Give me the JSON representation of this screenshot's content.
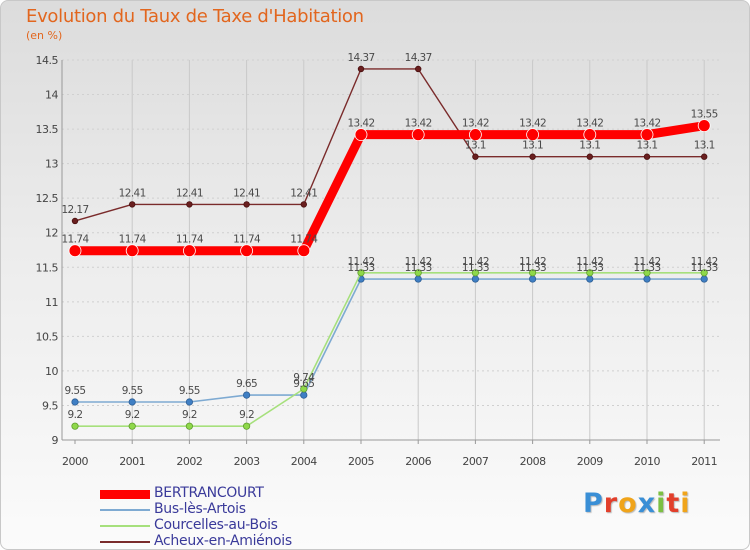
{
  "header": {
    "title": "Evolution du Taux de Taxe d'Habitation",
    "subtitle": "(en %)"
  },
  "chart_data": {
    "type": "line",
    "title": "Evolution du Taux de Taxe d'Habitation",
    "ylabel": "(en %)",
    "xlabel": "",
    "ylim": [
      9,
      14.5
    ],
    "x": [
      "2000",
      "2001",
      "2002",
      "2003",
      "2004",
      "2005",
      "2006",
      "2007",
      "2008",
      "2009",
      "2010",
      "2011"
    ],
    "y_ticks": [
      "9",
      "9.5",
      "10",
      "10.5",
      "11",
      "11.5",
      "12",
      "12.5",
      "13",
      "13.5",
      "14",
      "14.5"
    ],
    "legend_position": "bottom",
    "series": [
      {
        "name": "BERTRANCOURT",
        "color": "#ff0000",
        "values": [
          11.74,
          11.74,
          11.74,
          11.74,
          11.74,
          13.42,
          13.42,
          13.42,
          13.42,
          13.42,
          13.42,
          13.55
        ],
        "labels": [
          "11.74",
          "11.74",
          "11.74",
          "11.74",
          "11.74",
          "13.42",
          "13.42",
          "13.42",
          "13.42",
          "13.42",
          "13.42",
          "13.55"
        ]
      },
      {
        "name": "Bus-lès-Artois",
        "color": "#7eaad2",
        "values": [
          9.55,
          9.55,
          9.55,
          9.65,
          9.65,
          11.33,
          11.33,
          11.33,
          11.33,
          11.33,
          11.33,
          11.33
        ],
        "labels": [
          "9.55",
          "9.55",
          "9.55",
          "9.65",
          "9.65",
          "11.33",
          "11.33",
          "11.33",
          "11.33",
          "11.33",
          "11.33",
          "11.33"
        ]
      },
      {
        "name": "Courcelles-au-Bois",
        "color": "#a6e07c",
        "values": [
          9.2,
          9.2,
          9.2,
          9.2,
          9.74,
          11.42,
          11.42,
          11.42,
          11.42,
          11.42,
          11.42,
          11.42
        ],
        "labels": [
          "9.2",
          "9.2",
          "9.2",
          "9.2",
          "9.74",
          "11.42",
          "11.42",
          "11.42",
          "11.42",
          "11.42",
          "11.42",
          "11.42"
        ]
      },
      {
        "name": "Acheux-en-Amiénois",
        "color": "#7a2b2b",
        "values": [
          12.17,
          12.41,
          12.41,
          12.41,
          12.41,
          14.37,
          14.37,
          13.1,
          13.1,
          13.1,
          13.1,
          13.1
        ],
        "labels": [
          "12.17",
          "12.41",
          "12.41",
          "12.41",
          "12.41",
          "14.37",
          "14.37",
          "13.1",
          "13.1",
          "13.1",
          "13.1",
          "13.1"
        ]
      }
    ]
  },
  "legend": {
    "items": [
      {
        "label": "BERTRANCOURT",
        "color": "#ff0000"
      },
      {
        "label": "Bus-lès-Artois",
        "color": "#7eaad2"
      },
      {
        "label": "Courcelles-au-Bois",
        "color": "#a6e07c"
      },
      {
        "label": "Acheux-en-Amiénois",
        "color": "#7a2b2b"
      }
    ]
  },
  "logo": {
    "letters": [
      "P",
      "r",
      "o",
      "x",
      "i",
      "t",
      "i"
    ],
    "colors": [
      "#3a8fd6",
      "#e23f2b",
      "#f0a41a",
      "#3a8fd6",
      "#7cc043",
      "#e23f2b",
      "#f0a41a"
    ]
  }
}
